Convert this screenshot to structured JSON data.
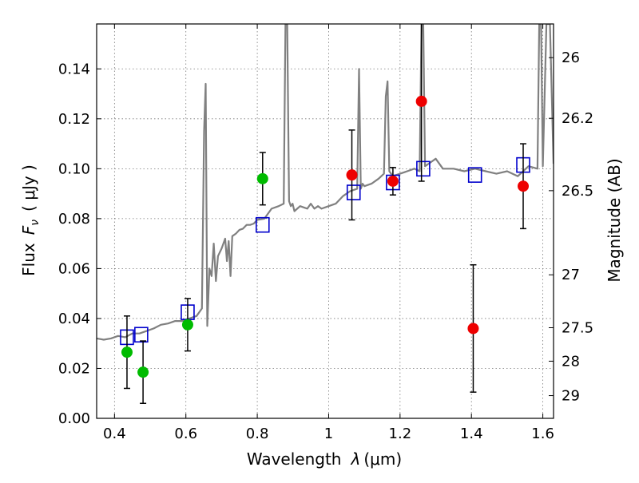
{
  "chart_data": {
    "type": "scatter",
    "title": "",
    "xlabel": "Wavelength",
    "xlabel_symbol": "λ",
    "xlabel_unit": "(μm)",
    "ylabel": "Flux",
    "ylabel_symbol": "F",
    "ylabel_sub": "ν",
    "ylabel_unit": "( μJy )",
    "y2label": "Magnitude (AB)",
    "xlim": [
      0.35,
      1.63
    ],
    "ylim": [
      0.0,
      0.158
    ],
    "grid": true,
    "xticks": [
      0.4,
      0.6,
      0.8,
      1.0,
      1.2,
      1.4,
      1.6
    ],
    "xtick_labels": [
      "0.4",
      "0.6",
      "0.8",
      "1",
      "1.2",
      "1.4",
      "1.6"
    ],
    "yticks": [
      0.0,
      0.02,
      0.04,
      0.06,
      0.08,
      0.1,
      0.12,
      0.14
    ],
    "ytick_labels": [
      "0.00",
      "0.02",
      "0.04",
      "0.06",
      "0.08",
      "0.10",
      "0.12",
      "0.14"
    ],
    "y2ticks": [
      {
        "label": "26",
        "flux": 0.1445
      },
      {
        "label": "26.2",
        "flux": 0.1202
      },
      {
        "label": "26.5",
        "flux": 0.0912
      },
      {
        "label": "27",
        "flux": 0.0575
      },
      {
        "label": "27.5",
        "flux": 0.0363
      },
      {
        "label": "28",
        "flux": 0.0229
      },
      {
        "label": "29",
        "flux": 0.0091
      }
    ],
    "colors": {
      "template": "#808080",
      "model_box": "#0000cc",
      "green_points": "#00bb00",
      "red_points": "#ee0000",
      "errorbar": "#000000",
      "grid": "#777777"
    },
    "series": [
      {
        "name": "model spectrum",
        "kind": "line",
        "x": [
          0.35,
          0.37,
          0.39,
          0.41,
          0.43,
          0.45,
          0.47,
          0.49,
          0.51,
          0.53,
          0.55,
          0.57,
          0.59,
          0.61,
          0.63,
          0.645,
          0.651,
          0.6555,
          0.66,
          0.666,
          0.672,
          0.678,
          0.684,
          0.69,
          0.7,
          0.71,
          0.715,
          0.72,
          0.725,
          0.73,
          0.74,
          0.75,
          0.76,
          0.77,
          0.78,
          0.79,
          0.8,
          0.82,
          0.84,
          0.86,
          0.874,
          0.879,
          0.884,
          0.889,
          0.894,
          0.899,
          0.904,
          0.92,
          0.94,
          0.95,
          0.96,
          0.97,
          0.98,
          1.0,
          1.02,
          1.04,
          1.06,
          1.08,
          1.085,
          1.09,
          1.095,
          1.1,
          1.12,
          1.14,
          1.155,
          1.16,
          1.165,
          1.17,
          1.18,
          1.2,
          1.22,
          1.24,
          1.255,
          1.26,
          1.265,
          1.27,
          1.28,
          1.3,
          1.32,
          1.35,
          1.38,
          1.41,
          1.44,
          1.47,
          1.5,
          1.53,
          1.56,
          1.585,
          1.59,
          1.595,
          1.6,
          1.61,
          1.62,
          1.63
        ],
        "y": [
          0.032,
          0.0315,
          0.032,
          0.033,
          0.0325,
          0.034,
          0.034,
          0.035,
          0.036,
          0.0375,
          0.038,
          0.039,
          0.039,
          0.04,
          0.041,
          0.044,
          0.115,
          0.134,
          0.037,
          0.06,
          0.057,
          0.07,
          0.055,
          0.065,
          0.068,
          0.072,
          0.063,
          0.071,
          0.057,
          0.073,
          0.074,
          0.0755,
          0.076,
          0.0775,
          0.0775,
          0.078,
          0.0795,
          0.08,
          0.084,
          0.085,
          0.086,
          0.158,
          0.158,
          0.087,
          0.085,
          0.086,
          0.083,
          0.085,
          0.084,
          0.086,
          0.084,
          0.085,
          0.084,
          0.085,
          0.086,
          0.089,
          0.091,
          0.092,
          0.14,
          0.092,
          0.094,
          0.093,
          0.094,
          0.096,
          0.098,
          0.129,
          0.135,
          0.099,
          0.097,
          0.098,
          0.099,
          0.1,
          0.099,
          0.158,
          0.158,
          0.101,
          0.102,
          0.104,
          0.1,
          0.1,
          0.099,
          0.1,
          0.099,
          0.098,
          0.099,
          0.097,
          0.101,
          0.1,
          0.158,
          0.158,
          0.101,
          0.158,
          0.158,
          0.102
        ]
      },
      {
        "name": "model photometry",
        "kind": "open-square",
        "points": [
          {
            "x": 0.435,
            "y": 0.0325
          },
          {
            "x": 0.475,
            "y": 0.0335
          },
          {
            "x": 0.605,
            "y": 0.0425
          },
          {
            "x": 0.815,
            "y": 0.0775
          },
          {
            "x": 1.07,
            "y": 0.0905
          },
          {
            "x": 1.18,
            "y": 0.0945
          },
          {
            "x": 1.265,
            "y": 0.1
          },
          {
            "x": 1.41,
            "y": 0.0975
          },
          {
            "x": 1.545,
            "y": 0.1015
          }
        ]
      },
      {
        "name": "observed (green)",
        "kind": "filled-circle",
        "points": [
          {
            "x": 0.435,
            "y": 0.0265,
            "err_low": 0.0145,
            "err_high": 0.0145
          },
          {
            "x": 0.48,
            "y": 0.0185,
            "err_low": 0.0125,
            "err_high": 0.0125
          },
          {
            "x": 0.605,
            "y": 0.0375,
            "err_low": 0.0105,
            "err_high": 0.0105
          },
          {
            "x": 0.815,
            "y": 0.096,
            "err_low": 0.0105,
            "err_high": 0.0105
          }
        ]
      },
      {
        "name": "observed (red)",
        "kind": "filled-circle",
        "points": [
          {
            "x": 1.065,
            "y": 0.0975,
            "err_low": 0.018,
            "err_high": 0.018
          },
          {
            "x": 1.18,
            "y": 0.095,
            "err_low": 0.0055,
            "err_high": 0.0055
          },
          {
            "x": 1.26,
            "y": 0.127,
            "err_low": 0.032,
            "err_high": 0.032
          },
          {
            "x": 1.405,
            "y": 0.036,
            "err_low": 0.0255,
            "err_high": 0.0255
          },
          {
            "x": 1.545,
            "y": 0.093,
            "err_low": 0.017,
            "err_high": 0.017
          }
        ]
      }
    ]
  }
}
